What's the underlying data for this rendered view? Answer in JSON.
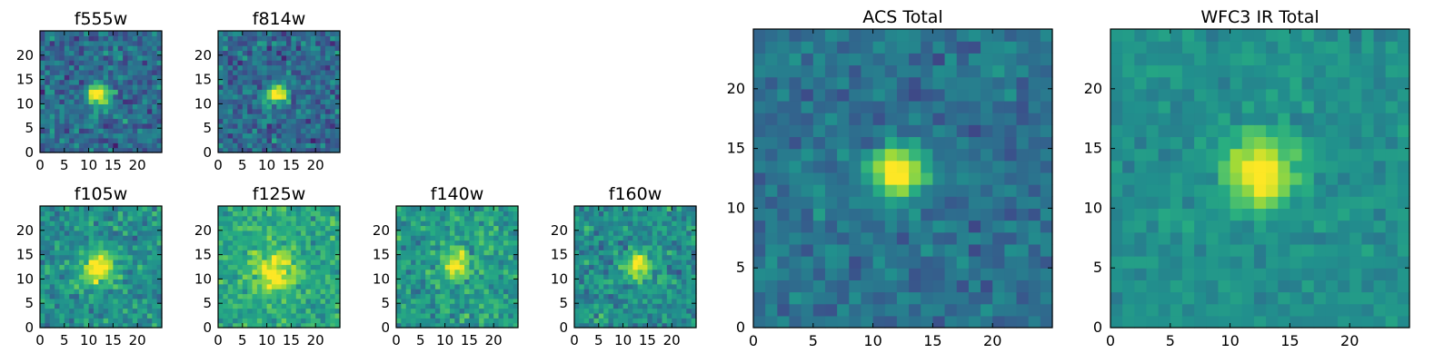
{
  "chart_data": [
    {
      "type": "heatmap",
      "title": "f555w",
      "xticks": [
        "0",
        "5",
        "10",
        "15",
        "20"
      ],
      "yticks": [
        "0",
        "5",
        "10",
        "15",
        "20"
      ],
      "xlim": [
        0,
        25
      ],
      "ylim": [
        0,
        25
      ],
      "colormap": "viridis",
      "source_center": [
        11.5,
        11.5
      ],
      "source_sigma": 1.6,
      "source_peak": 1.0,
      "noise_level": 0.55,
      "background": 0.35,
      "seed": 11
    },
    {
      "type": "heatmap",
      "title": "f814w",
      "xticks": [
        "0",
        "5",
        "10",
        "15",
        "20"
      ],
      "yticks": [
        "0",
        "5",
        "10",
        "15",
        "20"
      ],
      "xlim": [
        0,
        25
      ],
      "ylim": [
        0,
        25
      ],
      "colormap": "viridis",
      "source_center": [
        11.5,
        11.5
      ],
      "source_sigma": 1.4,
      "source_peak": 1.0,
      "noise_level": 0.55,
      "background": 0.35,
      "seed": 23
    },
    {
      "type": "heatmap",
      "title": "f105w",
      "xticks": [
        "0",
        "5",
        "10",
        "15",
        "20"
      ],
      "yticks": [
        "0",
        "5",
        "10",
        "15",
        "20"
      ],
      "xlim": [
        0,
        25
      ],
      "ylim": [
        0,
        25
      ],
      "colormap": "viridis",
      "source_center": [
        11.5,
        12.0
      ],
      "source_sigma": 2.4,
      "source_peak": 0.95,
      "noise_level": 0.5,
      "background": 0.5,
      "seed": 37
    },
    {
      "type": "heatmap",
      "title": "f125w",
      "xticks": [
        "0",
        "5",
        "10",
        "15",
        "20"
      ],
      "yticks": [
        "0",
        "5",
        "10",
        "15",
        "20"
      ],
      "xlim": [
        0,
        25
      ],
      "ylim": [
        0,
        25
      ],
      "colormap": "viridis",
      "source_center": [
        11.0,
        11.0
      ],
      "source_sigma": 2.8,
      "source_peak": 0.9,
      "noise_level": 0.45,
      "background": 0.6,
      "seed": 41
    },
    {
      "type": "heatmap",
      "title": "f140w",
      "xticks": [
        "0",
        "5",
        "10",
        "15",
        "20"
      ],
      "yticks": [
        "0",
        "5",
        "10",
        "15",
        "20"
      ],
      "xlim": [
        0,
        25
      ],
      "ylim": [
        0,
        25
      ],
      "colormap": "viridis",
      "source_center": [
        12.0,
        12.5
      ],
      "source_sigma": 1.9,
      "source_peak": 0.95,
      "noise_level": 0.5,
      "background": 0.55,
      "seed": 53
    },
    {
      "type": "heatmap",
      "title": "f160w",
      "xticks": [
        "0",
        "5",
        "10",
        "15",
        "20"
      ],
      "yticks": [
        "0",
        "5",
        "10",
        "15",
        "20"
      ],
      "xlim": [
        0,
        25
      ],
      "ylim": [
        0,
        25
      ],
      "colormap": "viridis",
      "source_center": [
        12.5,
        12.5
      ],
      "source_sigma": 1.8,
      "source_peak": 1.0,
      "noise_level": 0.5,
      "background": 0.5,
      "seed": 67
    },
    {
      "type": "heatmap",
      "title": "ACS Total",
      "xticks": [
        "0",
        "5",
        "10",
        "15",
        "20"
      ],
      "yticks": [
        "0",
        "5",
        "10",
        "15",
        "20"
      ],
      "xlim": [
        0,
        25
      ],
      "ylim": [
        0,
        25
      ],
      "colormap": "viridis",
      "source_center": [
        11.5,
        12.5
      ],
      "source_sigma": 1.5,
      "source_peak": 1.0,
      "noise_level": 0.35,
      "background": 0.38,
      "seed": 71
    },
    {
      "type": "heatmap",
      "title": "WFC3 IR Total",
      "xticks": [
        "0",
        "5",
        "10",
        "15",
        "20"
      ],
      "yticks": [
        "0",
        "5",
        "10",
        "15",
        "20"
      ],
      "xlim": [
        0,
        25
      ],
      "ylim": [
        0,
        25
      ],
      "colormap": "viridis",
      "source_center": [
        12.0,
        12.5
      ],
      "source_sigma": 2.0,
      "source_peak": 1.0,
      "noise_level": 0.25,
      "background": 0.5,
      "seed": 89
    }
  ]
}
